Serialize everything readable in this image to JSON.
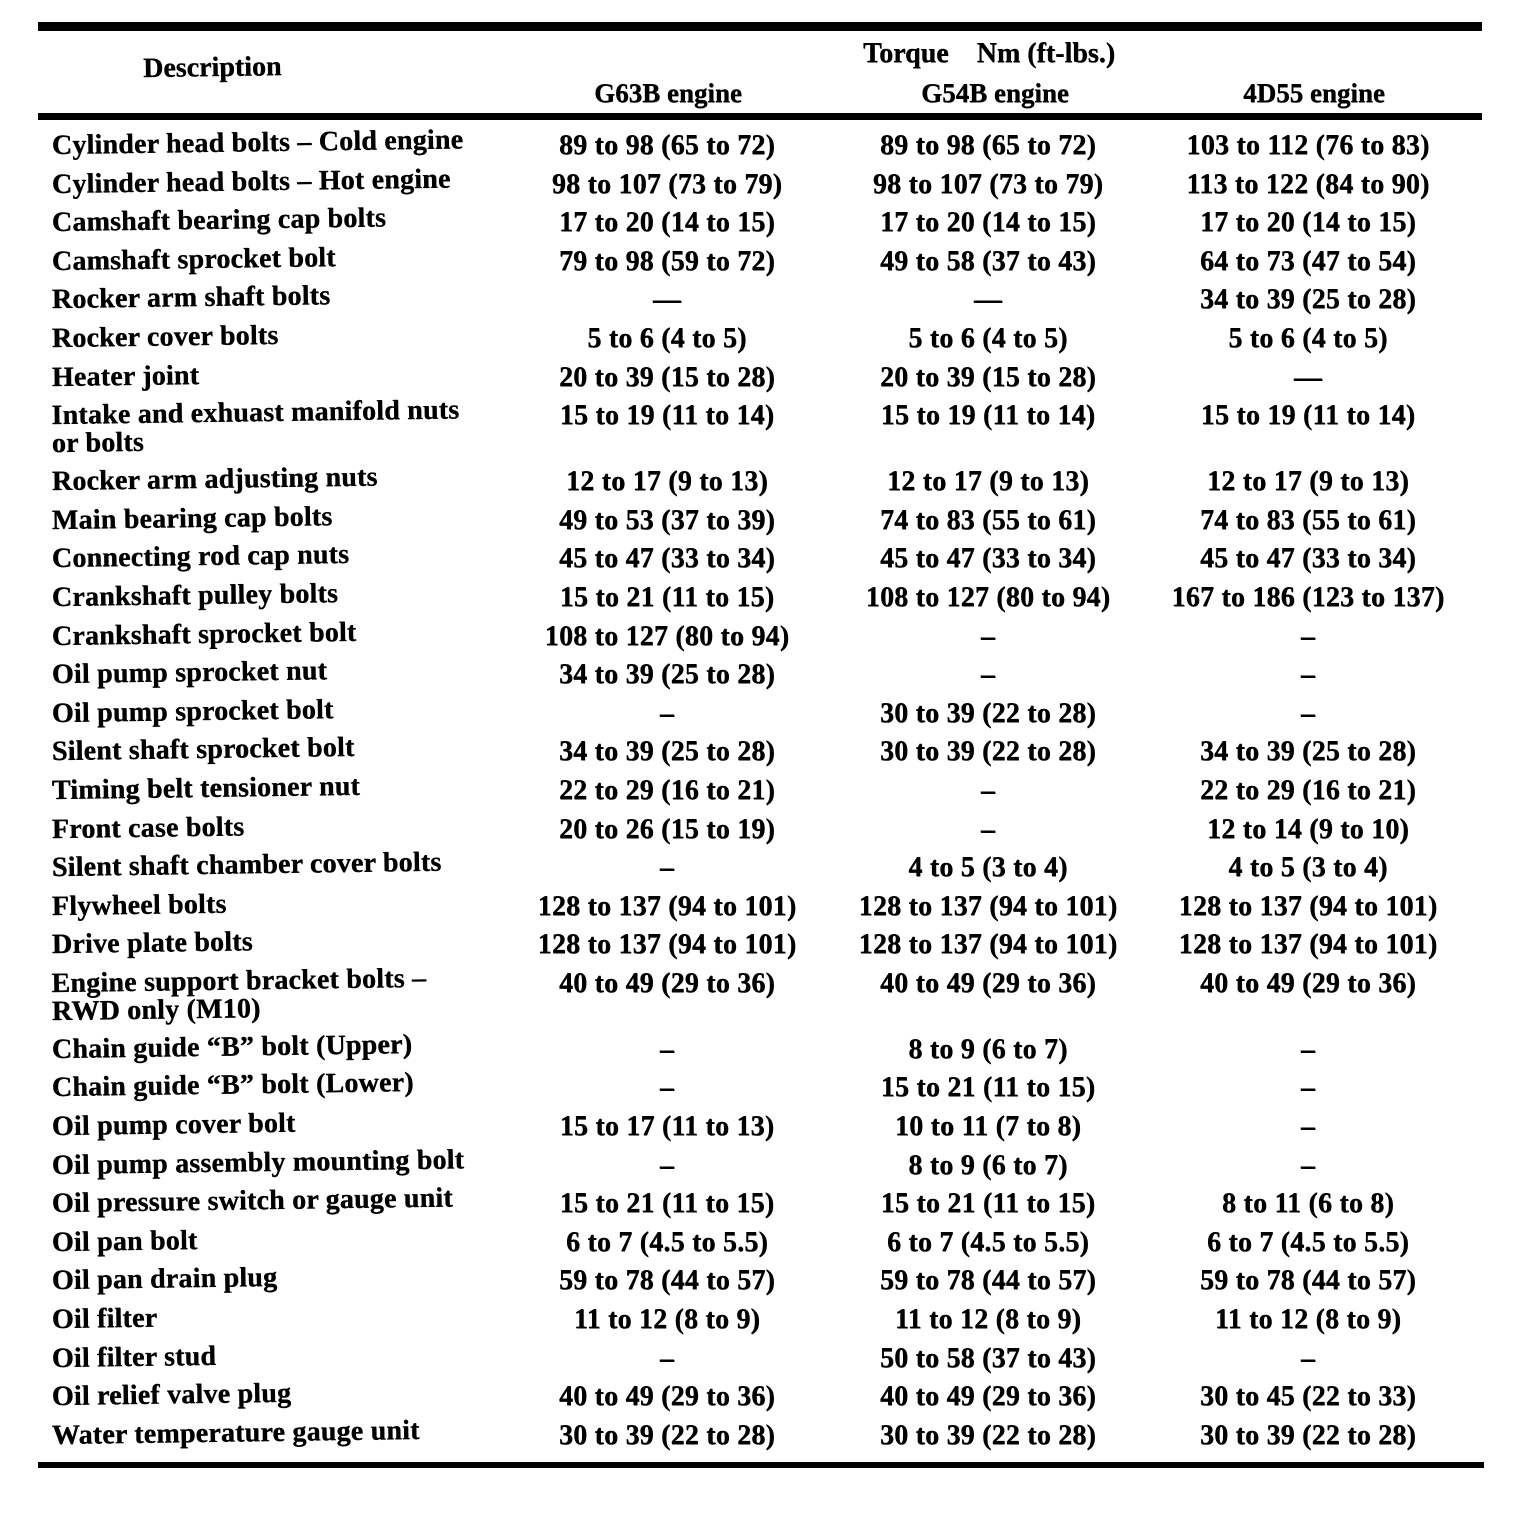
{
  "page": {
    "background": "#ffffff",
    "ink": "#000000"
  },
  "table": {
    "torque_header": "Torque    Nm (ft-lbs.)",
    "description_header": "Description",
    "engine_headers": [
      "G63B engine",
      "G54B engine",
      "4D55 engine"
    ],
    "rows": [
      {
        "description": "Cylinder head bolts – Cold engine",
        "g63b": "89 to 98 (65 to 72)",
        "g54b": "89 to 98 (65 to 72)",
        "d55": "103 to 112 (76 to 83)"
      },
      {
        "description": "Cylinder head bolts – Hot engine",
        "g63b": "98 to 107 (73 to 79)",
        "g54b": "98 to 107 (73 to 79)",
        "d55": "113 to 122 (84 to 90)"
      },
      {
        "description": "Camshaft bearing cap bolts",
        "g63b": "17 to 20 (14 to 15)",
        "g54b": "17 to 20 (14 to 15)",
        "d55": "17 to 20 (14 to 15)"
      },
      {
        "description": "Camshaft sprocket bolt",
        "g63b": "79 to 98 (59 to 72)",
        "g54b": "49 to 58 (37 to 43)",
        "d55": "64 to 73 (47 to 54)"
      },
      {
        "description": "Rocker arm shaft bolts",
        "g63b": "—",
        "g54b": "—",
        "d55": "34 to 39 (25 to 28)"
      },
      {
        "description": "Rocker cover bolts",
        "g63b": "5 to 6 (4 to 5)",
        "g54b": "5 to 6 (4 to 5)",
        "d55": "5 to 6 (4 to 5)"
      },
      {
        "description": "Heater joint",
        "g63b": "20 to 39 (15 to 28)",
        "g54b": "20 to 39 (15 to 28)",
        "d55": "—"
      },
      {
        "description": "Intake and exhuast manifold nuts",
        "description2": "or bolts",
        "g63b": "15 to 19 (11 to 14)",
        "g54b": "15 to 19 (11 to 14)",
        "d55": "15 to 19 (11 to 14)"
      },
      {
        "description": "Rocker arm adjusting nuts",
        "g63b": "12 to 17 (9 to 13)",
        "g54b": "12 to 17 (9 to 13)",
        "d55": "12 to 17 (9 to 13)"
      },
      {
        "description": "Main bearing cap bolts",
        "g63b": "49 to 53 (37 to 39)",
        "g54b": "74 to 83 (55 to 61)",
        "d55": "74 to 83 (55 to 61)"
      },
      {
        "description": "Connecting rod cap nuts",
        "g63b": "45 to 47 (33 to 34)",
        "g54b": "45 to 47 (33 to 34)",
        "d55": "45 to 47 (33 to 34)"
      },
      {
        "description": "Crankshaft pulley bolts",
        "g63b": "15 to 21 (11 to 15)",
        "g54b": "108 to 127 (80 to 94)",
        "d55": "167 to 186 (123 to 137)"
      },
      {
        "description": "Crankshaft sprocket bolt",
        "g63b": "108 to 127 (80 to 94)",
        "g54b": "–",
        "d55": "–"
      },
      {
        "description": "Oil pump sprocket nut",
        "g63b": "34 to 39 (25 to 28)",
        "g54b": "–",
        "d55": "–"
      },
      {
        "description": "Oil pump sprocket bolt",
        "g63b": "–",
        "g54b": "30 to 39 (22 to 28)",
        "d55": "–"
      },
      {
        "description": "Silent shaft sprocket bolt",
        "g63b": "34 to 39 (25 to 28)",
        "g54b": "30 to 39 (22 to 28)",
        "d55": "34 to 39 (25 to 28)"
      },
      {
        "description": "Timing belt tensioner nut",
        "g63b": "22 to 29 (16 to 21)",
        "g54b": "–",
        "d55": "22 to 29 (16 to 21)"
      },
      {
        "description": "Front case bolts",
        "g63b": "20 to 26 (15 to 19)",
        "g54b": "–",
        "d55": "12 to 14 (9 to 10)"
      },
      {
        "description": "Silent shaft chamber cover bolts",
        "g63b": "–",
        "g54b": "4 to 5 (3 to 4)",
        "d55": "4 to 5 (3 to 4)"
      },
      {
        "description": "Flywheel bolts",
        "g63b": "128 to 137 (94 to 101)",
        "g54b": "128 to 137 (94 to 101)",
        "d55": "128 to 137 (94 to 101)"
      },
      {
        "description": "Drive plate bolts",
        "g63b": "128 to 137 (94 to 101)",
        "g54b": "128 to 137 (94 to 101)",
        "d55": "128 to 137 (94 to 101)"
      },
      {
        "description": "Engine support bracket bolts –",
        "description2": "RWD only (M10)",
        "g63b": "40 to 49 (29 to 36)",
        "g54b": "40 to 49 (29 to 36)",
        "d55": "40 to 49 (29 to 36)"
      },
      {
        "description": "Chain guide “B” bolt (Upper)",
        "g63b": "–",
        "g54b": "8 to 9 (6 to 7)",
        "d55": "–"
      },
      {
        "description": "Chain guide “B” bolt (Lower)",
        "g63b": "–",
        "g54b": "15 to 21 (11 to 15)",
        "d55": "–"
      },
      {
        "description": "Oil pump cover bolt",
        "g63b": "15 to 17 (11 to 13)",
        "g54b": "10 to 11 (7 to 8)",
        "d55": "–"
      },
      {
        "description": "Oil pump assembly mounting bolt",
        "g63b": "–",
        "g54b": "8 to 9 (6 to 7)",
        "d55": "–"
      },
      {
        "description": "Oil pressure switch or gauge unit",
        "g63b": "15 to 21 (11 to 15)",
        "g54b": "15 to 21 (11 to 15)",
        "d55": "8 to 11 (6 to 8)"
      },
      {
        "description": "Oil pan bolt",
        "g63b": "6 to 7 (4.5 to 5.5)",
        "g54b": "6 to 7 (4.5 to 5.5)",
        "d55": "6 to 7 (4.5 to 5.5)"
      },
      {
        "description": "Oil pan drain plug",
        "g63b": "59 to 78 (44 to 57)",
        "g54b": "59 to 78 (44 to 57)",
        "d55": "59 to 78 (44 to 57)"
      },
      {
        "description": "Oil filter",
        "g63b": "11 to 12 (8 to 9)",
        "g54b": "11 to 12 (8 to 9)",
        "d55": "11 to 12 (8 to 9)"
      },
      {
        "description": "Oil filter stud",
        "g63b": "–",
        "g54b": "50 to 58 (37 to 43)",
        "d55": "–"
      },
      {
        "description": "Oil relief valve plug",
        "g63b": "40 to 49 (29 to 36)",
        "g54b": "40 to 49 (29 to 36)",
        "d55": "30 to 45 (22 to 33)"
      },
      {
        "description": "Water temperature gauge unit",
        "g63b": "30 to 39 (22 to 28)",
        "g54b": "30 to 39 (22 to 28)",
        "d55": "30 to 39 (22 to 28)"
      }
    ]
  }
}
